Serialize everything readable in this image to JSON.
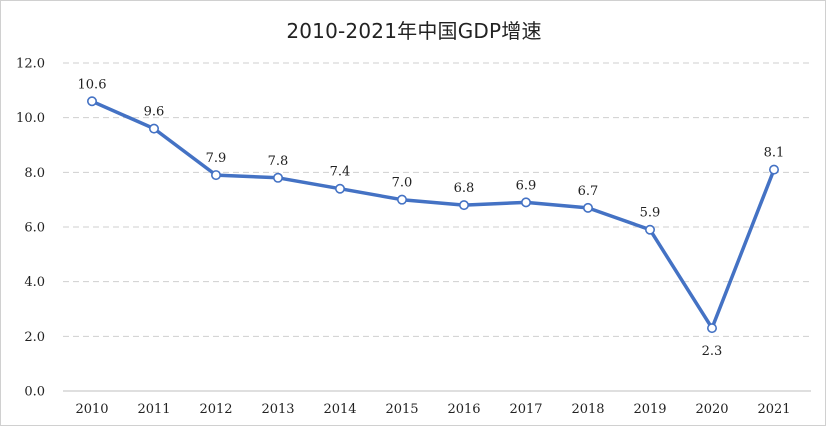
{
  "chart_data": {
    "type": "line",
    "title": "2010-2021年中国GDP增速",
    "categories": [
      "2010",
      "2011",
      "2012",
      "2013",
      "2014",
      "2015",
      "2016",
      "2017",
      "2018",
      "2019",
      "2020",
      "2021"
    ],
    "values": [
      10.6,
      9.6,
      7.9,
      7.8,
      7.4,
      7.0,
      6.8,
      6.9,
      6.7,
      5.9,
      2.3,
      8.1
    ],
    "value_labels": [
      "10.6",
      "9.6",
      "7.9",
      "7.8",
      "7.4",
      "7.0",
      "6.8",
      "6.9",
      "6.7",
      "5.9",
      "2.3",
      "8.1"
    ],
    "y_ticks": [
      "0.0",
      "2.0",
      "4.0",
      "6.0",
      "8.0",
      "10.0",
      "12.0"
    ],
    "ylim": [
      0,
      12
    ],
    "grid": true,
    "gridline_style": "dashed",
    "line_color": "#4472c4"
  }
}
